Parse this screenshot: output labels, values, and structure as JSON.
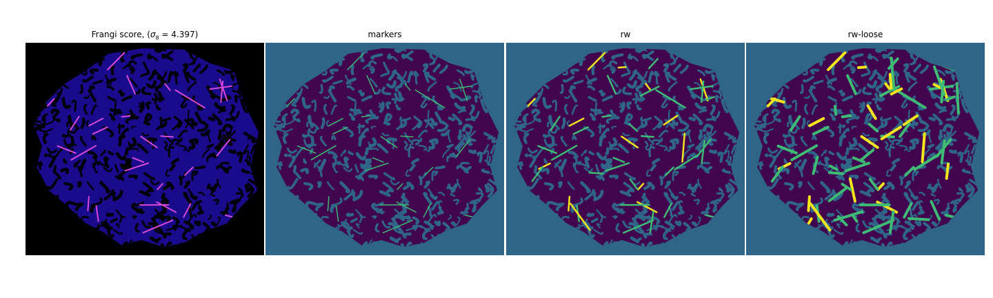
{
  "panels": [
    {
      "title_prefix": "Frangi score, (",
      "title_symbol": "σ",
      "title_subscript": "8",
      "title_suffix": " = 4.397)"
    },
    {
      "title": "markers"
    },
    {
      "title": "rw"
    },
    {
      "title": "rw-loose"
    }
  ],
  "colors": {
    "background_black": "#000000",
    "frangi_fill": "#1a0b8c",
    "frangi_ridge": "#d848d8",
    "teal": "#2f6589",
    "purple": "#42054f",
    "green": "#3fbc74",
    "yellow": "#f2e51d"
  }
}
